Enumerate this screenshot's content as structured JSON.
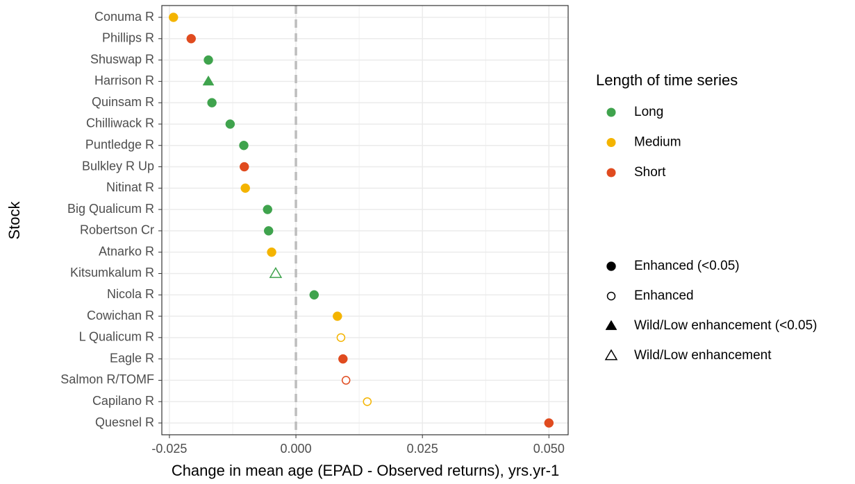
{
  "chart_data": {
    "type": "dot",
    "x_label": "Change in mean age (EPAD - Observed returns), yrs.yr-1",
    "y_label": "Stock",
    "categories": [
      "Conuma R",
      "Phillips R",
      "Shuswap R",
      "Harrison R",
      "Quinsam R",
      "Chilliwack R",
      "Puntledge R",
      "Bulkley R Up",
      "Nitinat R",
      "Big Qualicum R",
      "Robertson Cr",
      "Atnarko R",
      "Kitsumkalum R",
      "Nicola R",
      "Cowichan R",
      "L Qualicum R",
      "Eagle R",
      "Salmon R/TOMF",
      "Capilano R",
      "Quesnel R"
    ],
    "legend_title": "Length of time series",
    "series": [
      {
        "name": "Long",
        "color": "#3fa34d",
        "values": [
          null,
          null,
          -0.0173,
          -0.0173,
          -0.0166,
          -0.013,
          -0.0103,
          null,
          null,
          -0.0056,
          -0.0054,
          null,
          -0.004,
          0.0036,
          null,
          null,
          null,
          null,
          null,
          null
        ],
        "shapes": [
          null,
          null,
          0,
          2,
          0,
          0,
          0,
          null,
          null,
          0,
          0,
          null,
          3,
          0,
          null,
          null,
          null,
          null,
          null,
          null
        ]
      },
      {
        "name": "Medium",
        "color": "#f4b400",
        "values": [
          -0.0242,
          null,
          null,
          null,
          null,
          null,
          null,
          null,
          -0.01,
          null,
          null,
          -0.0048,
          null,
          null,
          0.0082,
          0.0089,
          null,
          null,
          0.0141,
          null
        ],
        "shapes": [
          0,
          null,
          null,
          null,
          null,
          null,
          null,
          null,
          0,
          null,
          null,
          0,
          null,
          null,
          0,
          1,
          null,
          null,
          1,
          null
        ]
      },
      {
        "name": "Short",
        "color": "#e04b1f",
        "values": [
          null,
          -0.0207,
          null,
          null,
          null,
          null,
          null,
          -0.0102,
          null,
          null,
          null,
          null,
          null,
          null,
          null,
          null,
          0.0093,
          0.0099,
          null,
          0.05
        ],
        "shapes": [
          null,
          0,
          null,
          null,
          null,
          null,
          null,
          0,
          null,
          null,
          null,
          null,
          null,
          null,
          null,
          null,
          0,
          1,
          null,
          0
        ]
      }
    ],
    "shape_legend": [
      {
        "name": "Enhanced (<0.05)",
        "marker": "circle",
        "filled": true
      },
      {
        "name": "Enhanced",
        "marker": "circle",
        "filled": false
      },
      {
        "name": "Wild/Low enhancement (<0.05)",
        "marker": "triangle",
        "filled": true
      },
      {
        "name": "Wild/Low enhancement",
        "marker": "triangle",
        "filled": false
      }
    ],
    "xlim": [
      -0.0265,
      0.0538
    ],
    "xticks": [
      -0.025,
      {
        "value": 0,
        "label": "0.000"
      },
      0.025,
      {
        "value": 0.05,
        "label": "0.050"
      }
    ],
    "minor_xticks": [
      -0.0125,
      0.0125,
      0.0375
    ],
    "reference_line": 0,
    "grid": true
  }
}
